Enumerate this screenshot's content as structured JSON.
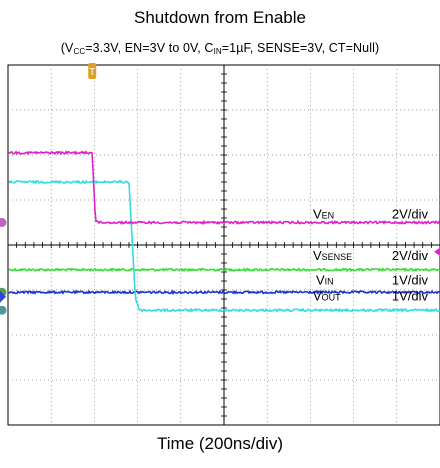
{
  "title": "Shutdown from Enable",
  "subtitle": {
    "p1": "(V",
    "s1": "CC",
    "p2": "=3.3V, EN=3V to 0V, C",
    "s2": "IN",
    "p3": "=1µF, SENSE=3V, CT=Null)"
  },
  "xlabel": "Time (200ns/div)",
  "chart_data": {
    "type": "line",
    "title": "Shutdown from Enable",
    "xlabel": "Time (200ns/div)",
    "time_per_div_ns": 200,
    "divisions": {
      "x": 10,
      "y": 8
    },
    "grid": true,
    "trigger_marker": "T",
    "series": [
      {
        "name": "VSENSE",
        "sym": "V",
        "sub": "SENSE",
        "scale_label": "2V/div",
        "color": "#33dd33",
        "x_ns": [
          0,
          2000
        ],
        "v_div": [
          -0.55,
          -0.55
        ]
      },
      {
        "name": "VEN",
        "sym": "V",
        "sub": "EN",
        "scale_label": "2V/div",
        "color": "#dd22cc",
        "x_ns": [
          0,
          390,
          405,
          420,
          2000
        ],
        "v_div": [
          2.05,
          2.05,
          0.55,
          0.5,
          0.5
        ]
      },
      {
        "name": "VIN",
        "sym": "V",
        "sub": "IN",
        "scale_label": "1V/div",
        "color": "#1a33cc",
        "x_ns": [
          0,
          2000
        ],
        "v_div": [
          -1.05,
          -1.05
        ]
      },
      {
        "name": "VOUT",
        "sym": "V",
        "sub": "OUT",
        "scale_label": "1V/div",
        "color": "#33dddd",
        "x_ns": [
          0,
          560,
          590,
          610,
          2000
        ],
        "v_div": [
          1.4,
          1.4,
          -1.2,
          -1.45,
          -1.45
        ]
      }
    ]
  }
}
